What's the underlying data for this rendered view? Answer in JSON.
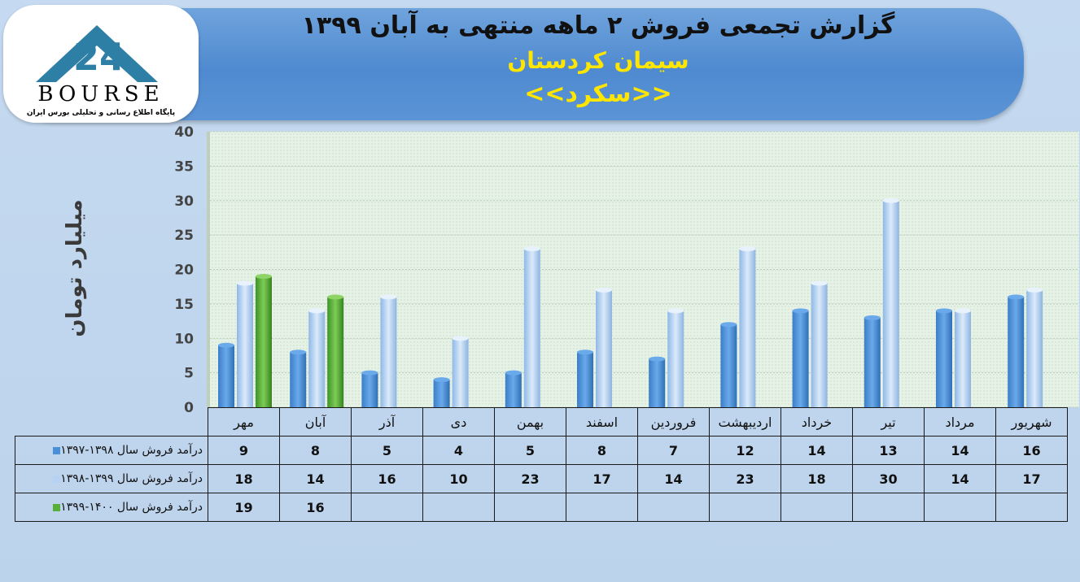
{
  "header": {
    "title": "گزارش تجمعی فروش ۲ ماهه منتهی به آبان ۱۳۹۹",
    "company": "سیمان کردستان",
    "symbol": "<<سکرد>>"
  },
  "logo": {
    "name": "BOURSE",
    "tagline": "پایگاه اطلاع رسانی و تحلیلی بورس ایران",
    "mark": "24"
  },
  "colors": {
    "series1": "#4a90d9",
    "series2": "#b5d2f2",
    "series3": "#58b03a",
    "plot_bg": "#e3f0e3"
  },
  "chart_data": {
    "type": "bar",
    "ylabel": "میلیارد تومان",
    "ylim": [
      0,
      40
    ],
    "yticks": [
      "0",
      "5",
      "10",
      "15",
      "20",
      "25",
      "30",
      "35",
      "40"
    ],
    "grid": true,
    "categories": [
      "مهر",
      "آبان",
      "آذر",
      "دی",
      "بهمن",
      "اسفند",
      "فروردین",
      "اردیبهشت",
      "خرداد",
      "تیر",
      "مرداد",
      "شهریور"
    ],
    "series": [
      {
        "name": "درآمد فروش سال ۱۳۹۸-۱۳۹۷",
        "values": [
          9,
          8,
          5,
          4,
          5,
          8,
          7,
          12,
          14,
          13,
          14,
          16
        ]
      },
      {
        "name": "درآمد فروش سال ۱۳۹۹-۱۳۹۸",
        "values": [
          18,
          14,
          16,
          10,
          23,
          17,
          14,
          23,
          18,
          30,
          14,
          17
        ]
      },
      {
        "name": "درآمد فروش سال ۱۴۰۰-۱۳۹۹",
        "values": [
          19,
          16,
          null,
          null,
          null,
          null,
          null,
          null,
          null,
          null,
          null,
          null
        ]
      }
    ]
  }
}
